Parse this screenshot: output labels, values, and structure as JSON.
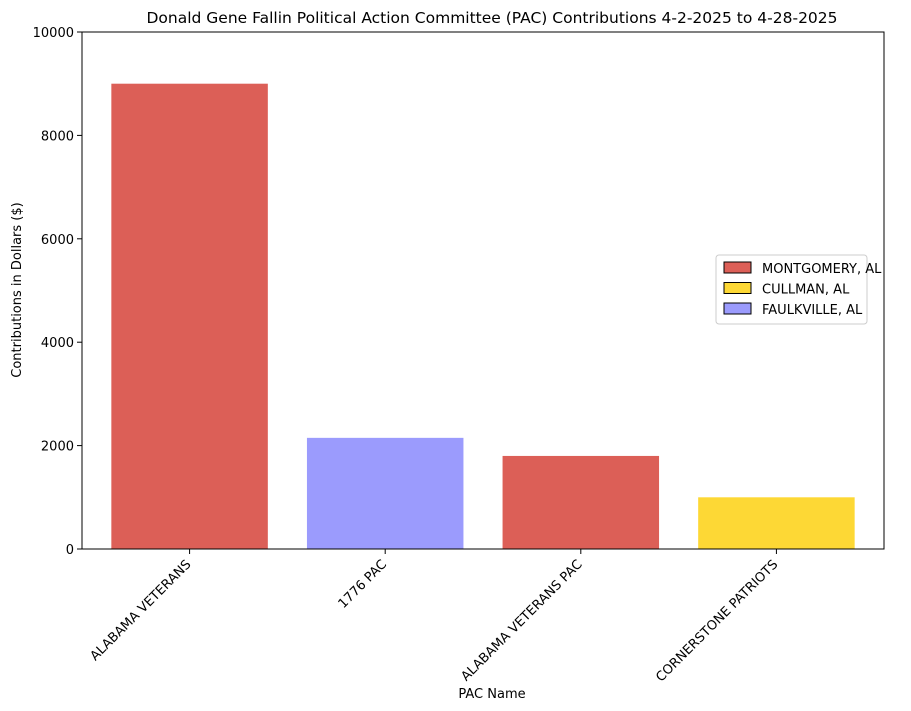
{
  "chart_data": {
    "type": "bar",
    "title": "Donald Gene Fallin Political Action Committee (PAC) Contributions 4-2-2025 to 4-28-2025",
    "xlabel": "PAC Name",
    "ylabel": "Contributions in Dollars ($)",
    "ylim": [
      0,
      10000
    ],
    "yticks": [
      "0",
      "2000",
      "4000",
      "6000",
      "8000",
      "10000"
    ],
    "grid": false,
    "legend_position": "center-right",
    "categories": [
      "ALABAMA VETERANS",
      "1776 PAC",
      "ALABAMA VETERANS PAC",
      "CORNERSTONE PATRIOTS"
    ],
    "values": [
      9000,
      2150,
      1800,
      1000
    ],
    "bar_groups": [
      "MONTGOMERY, AL",
      "FAULKVILLE, AL",
      "MONTGOMERY, AL",
      "CULLMAN, AL"
    ],
    "legend": [
      {
        "label": "MONTGOMERY, AL",
        "color": "#dc5f57"
      },
      {
        "label": "CULLMAN, AL",
        "color": "#fdd835"
      },
      {
        "label": "FAULKVILLE, AL",
        "color": "#9b9bfd"
      }
    ]
  }
}
